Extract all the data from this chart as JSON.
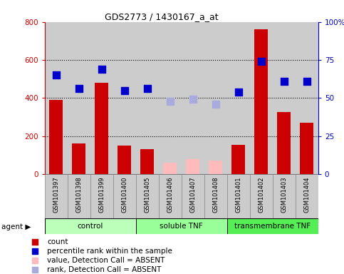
{
  "title": "GDS2773 / 1430167_a_at",
  "samples": [
    "GSM101397",
    "GSM101398",
    "GSM101399",
    "GSM101400",
    "GSM101405",
    "GSM101406",
    "GSM101407",
    "GSM101408",
    "GSM101401",
    "GSM101402",
    "GSM101403",
    "GSM101404"
  ],
  "bar_values": [
    390,
    160,
    480,
    150,
    130,
    60,
    80,
    70,
    155,
    760,
    325,
    270
  ],
  "bar_colors": [
    "#cc0000",
    "#cc0000",
    "#cc0000",
    "#cc0000",
    "#cc0000",
    "#ffbbbb",
    "#ffbbbb",
    "#ffbbbb",
    "#cc0000",
    "#cc0000",
    "#cc0000",
    "#cc0000"
  ],
  "rank_values_pct": [
    65,
    56,
    69,
    55,
    56,
    48,
    49,
    46,
    54,
    74,
    61,
    61
  ],
  "rank_colors": [
    "#0000cc",
    "#0000cc",
    "#0000cc",
    "#0000cc",
    "#0000cc",
    "#aaaadd",
    "#aaaadd",
    "#aaaadd",
    "#0000cc",
    "#0000cc",
    "#0000cc",
    "#0000cc"
  ],
  "groups": [
    {
      "label": "control",
      "start": 0,
      "end": 4,
      "color": "#bbffbb"
    },
    {
      "label": "soluble TNF",
      "start": 4,
      "end": 8,
      "color": "#99ff99"
    },
    {
      "label": "transmembrane TNF",
      "start": 8,
      "end": 12,
      "color": "#55ee55"
    }
  ],
  "ylim_left": [
    0,
    800
  ],
  "ylim_right": [
    0,
    100
  ],
  "left_yticks": [
    0,
    200,
    400,
    600,
    800
  ],
  "right_yticks": [
    0,
    25,
    50,
    75,
    100
  ],
  "right_yticklabels": [
    "0",
    "25",
    "50",
    "75",
    "100%"
  ],
  "left_color": "#cc0000",
  "right_color": "#0000bb",
  "plot_bg_color": "#ffffff",
  "col_bg_color": "#cccccc",
  "dotted_lines": [
    200,
    400,
    600
  ],
  "bar_width": 0.6,
  "marker_size": 50,
  "legend_items": [
    {
      "color": "#cc0000",
      "label": "count"
    },
    {
      "color": "#0000cc",
      "label": "percentile rank within the sample"
    },
    {
      "color": "#ffbbbb",
      "label": "value, Detection Call = ABSENT"
    },
    {
      "color": "#aaaadd",
      "label": "rank, Detection Call = ABSENT"
    }
  ]
}
